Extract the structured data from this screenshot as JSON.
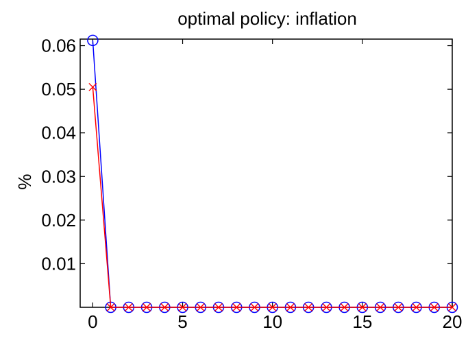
{
  "chart_data": {
    "type": "line",
    "title": "optimal policy: inflation",
    "xlabel": "",
    "ylabel": "%",
    "xlim": [
      -0.7,
      20
    ],
    "ylim": [
      0,
      0.0615
    ],
    "xticks": [
      0,
      5,
      10,
      15,
      20
    ],
    "yticks": [
      0.01,
      0.02,
      0.03,
      0.04,
      0.05,
      0.06
    ],
    "ytick_labels": [
      "0.01",
      "0.02",
      "0.03",
      "0.04",
      "0.05",
      "0.06"
    ],
    "grid": false,
    "x": [
      0,
      1,
      2,
      3,
      4,
      5,
      6,
      7,
      8,
      9,
      10,
      11,
      12,
      13,
      14,
      15,
      16,
      17,
      18,
      19,
      20
    ],
    "series": [
      {
        "marker": "circle",
        "color": "#0000ff",
        "values": [
          0.0612,
          0,
          0,
          0,
          0,
          0,
          0,
          0,
          0,
          0,
          0,
          0,
          0,
          0,
          0,
          0,
          0,
          0,
          0,
          0,
          0
        ]
      },
      {
        "marker": "x",
        "color": "#ff0000",
        "values": [
          0.0505,
          0,
          0,
          0,
          0,
          0,
          0,
          0,
          0,
          0,
          0,
          0,
          0,
          0,
          0,
          0,
          0,
          0,
          0,
          0,
          0
        ]
      }
    ]
  }
}
